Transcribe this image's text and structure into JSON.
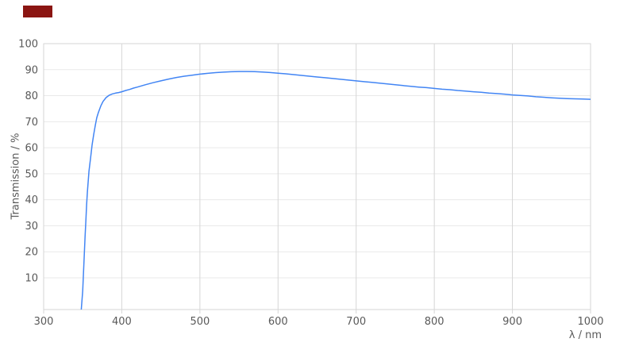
{
  "marker": {
    "color": "#8b1512"
  },
  "colors": {
    "line": "#4285f4",
    "grid_horizontal": "#e9e9e9",
    "grid_vertical": "#d6d6d6",
    "axis_border": "#d6d6d6",
    "tick_text": "#595959",
    "background": "#ffffff"
  },
  "chart_data": {
    "type": "line",
    "title": "",
    "xlabel": "λ / nm",
    "ylabel": "Transmission / %",
    "xlim": [
      300,
      1000
    ],
    "ylim": [
      0,
      100
    ],
    "x_ticks": [
      300,
      400,
      500,
      600,
      700,
      800,
      900,
      1000
    ],
    "y_ticks": [
      10,
      20,
      30,
      40,
      50,
      60,
      70,
      80,
      90,
      100
    ],
    "grid": true,
    "legend": false,
    "series": [
      {
        "x": [
          348,
          350,
          351,
          352,
          353,
          354,
          355,
          356,
          357,
          358,
          360,
          362,
          364,
          366,
          368,
          370,
          373,
          376,
          380,
          384,
          388,
          392,
          396,
          400,
          405,
          410,
          415,
          420,
          430,
          440,
          450,
          460,
          470,
          480,
          490,
          500,
          510,
          520,
          530,
          540,
          550,
          560,
          570,
          580,
          590,
          600,
          610,
          620,
          630,
          640,
          650,
          660,
          670,
          680,
          690,
          700,
          710,
          720,
          730,
          740,
          750,
          760,
          770,
          780,
          790,
          800,
          810,
          820,
          830,
          840,
          850,
          860,
          870,
          880,
          890,
          900,
          910,
          920,
          930,
          940,
          950,
          960,
          970,
          980,
          990,
          1000
        ],
        "y": [
          -3,
          5,
          12,
          19,
          26,
          32,
          38,
          43,
          47,
          51,
          56,
          61,
          65,
          68.5,
          71.5,
          73.5,
          76,
          77.8,
          79.3,
          80.2,
          80.7,
          81,
          81.2,
          81.5,
          82,
          82.4,
          82.9,
          83.3,
          84.2,
          85,
          85.7,
          86.4,
          87,
          87.5,
          87.9,
          88.3,
          88.6,
          88.85,
          89.05,
          89.2,
          89.3,
          89.3,
          89.25,
          89.1,
          88.9,
          88.65,
          88.4,
          88.1,
          87.8,
          87.5,
          87.2,
          86.9,
          86.6,
          86.3,
          86,
          85.7,
          85.4,
          85.1,
          84.8,
          84.5,
          84.2,
          83.9,
          83.6,
          83.3,
          83.1,
          82.8,
          82.5,
          82.3,
          82,
          81.8,
          81.5,
          81.3,
          81,
          80.8,
          80.6,
          80.3,
          80.1,
          79.9,
          79.6,
          79.4,
          79.2,
          79,
          78.9,
          78.8,
          78.7,
          78.6
        ]
      }
    ]
  }
}
